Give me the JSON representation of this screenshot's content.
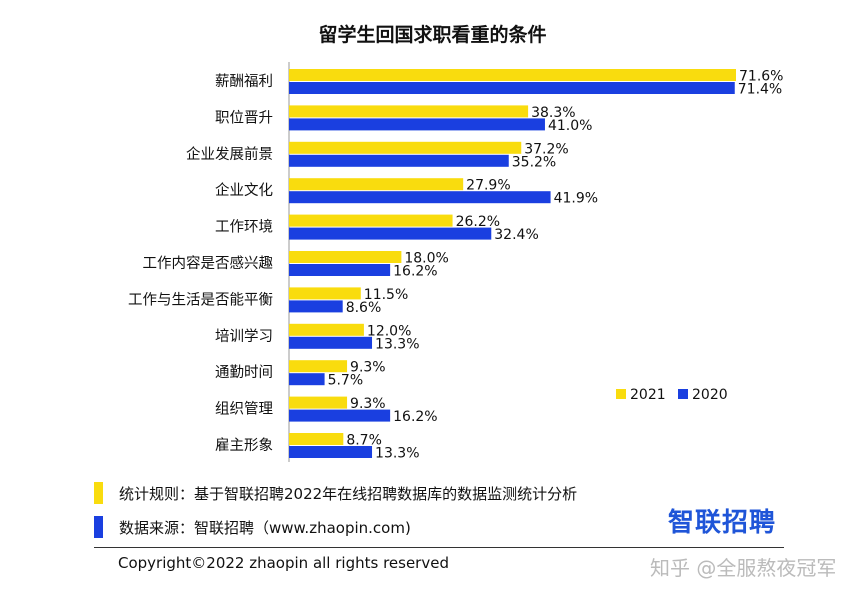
{
  "chart_data": {
    "type": "bar",
    "orientation": "horizontal",
    "title": "留学生回国求职看重的条件",
    "categories": [
      "薪酬福利",
      "职位晋升",
      "企业发展前景",
      "企业文化",
      "工作环境",
      "工作内容是否感兴趣",
      "工作与生活是否能平衡",
      "培训学习",
      "通勤时间",
      "组织管理",
      "雇主形象"
    ],
    "series": [
      {
        "name": "2021",
        "color": "#f9dc0e",
        "values": [
          71.6,
          38.3,
          37.2,
          27.9,
          26.2,
          18.0,
          11.5,
          12.0,
          9.3,
          9.3,
          8.7
        ]
      },
      {
        "name": "2020",
        "color": "#1a3fe0",
        "values": [
          71.4,
          41.0,
          35.2,
          41.9,
          32.4,
          16.2,
          8.6,
          13.3,
          5.7,
          16.2,
          13.3
        ]
      }
    ],
    "value_suffix": "%",
    "xlim": [
      0,
      71.6
    ],
    "legend_position": "right",
    "grid": false
  },
  "notes": {
    "rule_label": "统计规则：基于智联招聘2022年在线招聘数据库的数据监测统计分析",
    "source_label": "数据来源：智联招聘（www.zhaopin.com)"
  },
  "brand": "智联招聘",
  "copyright": "Copyright©2022 zhaopin all rights reserved",
  "watermark": "知乎 @全服熬夜冠军",
  "colors": {
    "yellow": "#f9dc0e",
    "blue": "#1a3fe0"
  }
}
